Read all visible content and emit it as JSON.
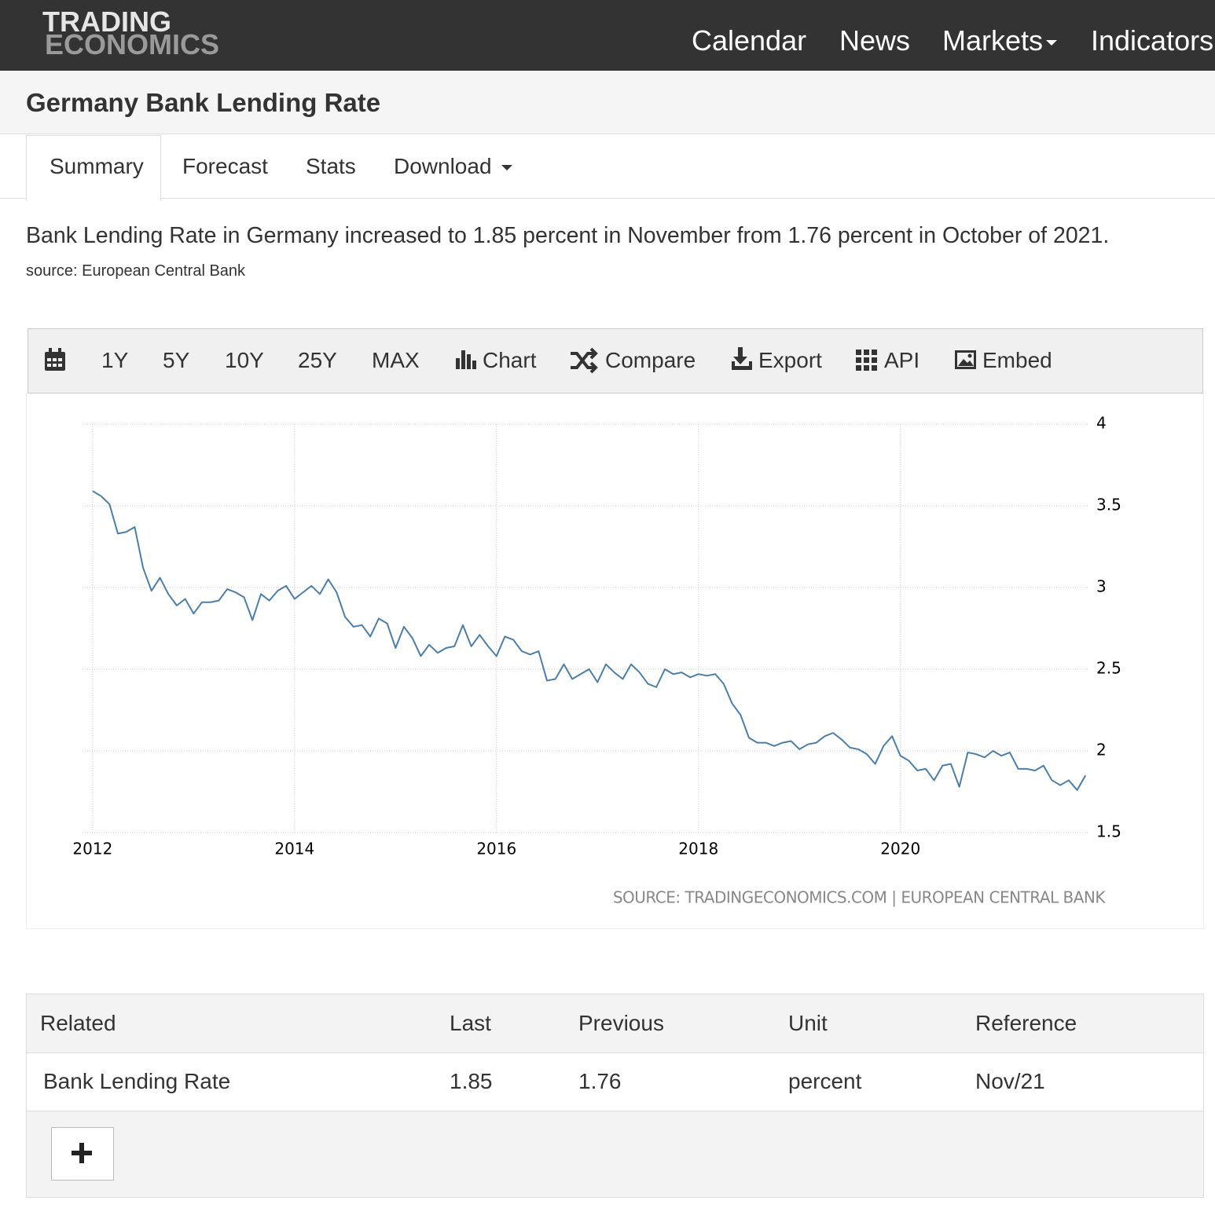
{
  "nav": {
    "logo": [
      "TRADING",
      "ECONOMICS"
    ],
    "links": [
      "Calendar",
      "News",
      "Markets",
      "Indicators"
    ]
  },
  "header": {
    "title": "Germany Bank Lending Rate"
  },
  "tabs": [
    "Summary",
    "Forecast",
    "Stats",
    "Download"
  ],
  "summary": {
    "text": "Bank Lending Rate in Germany increased to 1.85 percent in November from 1.76 percent in October of 2021.",
    "source": "source: European Central Bank"
  },
  "toolbar": [
    "1Y",
    "5Y",
    "10Y",
    "25Y",
    "MAX",
    "Chart",
    "Compare",
    "Export",
    "API",
    "Embed"
  ],
  "chart_data": {
    "type": "line",
    "color": "#4a7fab",
    "x": [
      2012,
      2012.083,
      2012.167,
      2012.25,
      2012.333,
      2012.417,
      2012.5,
      2012.583,
      2012.667,
      2012.75,
      2012.833,
      2012.917,
      2013,
      2013.083,
      2013.167,
      2013.25,
      2013.333,
      2013.417,
      2013.5,
      2013.583,
      2013.667,
      2013.75,
      2013.833,
      2013.917,
      2014,
      2014.083,
      2014.167,
      2014.25,
      2014.333,
      2014.417,
      2014.5,
      2014.583,
      2014.667,
      2014.75,
      2014.833,
      2014.917,
      2015,
      2015.083,
      2015.167,
      2015.25,
      2015.333,
      2015.417,
      2015.5,
      2015.583,
      2015.667,
      2015.75,
      2015.833,
      2015.917,
      2016,
      2016.083,
      2016.167,
      2016.25,
      2016.333,
      2016.417,
      2016.5,
      2016.583,
      2016.667,
      2016.75,
      2016.833,
      2016.917,
      2017,
      2017.083,
      2017.167,
      2017.25,
      2017.333,
      2017.417,
      2017.5,
      2017.583,
      2017.667,
      2017.75,
      2017.833,
      2017.917,
      2018,
      2018.083,
      2018.167,
      2018.25,
      2018.333,
      2018.417,
      2018.5,
      2018.583,
      2018.667,
      2018.75,
      2018.833,
      2018.917,
      2019,
      2019.083,
      2019.167,
      2019.25,
      2019.333,
      2019.417,
      2019.5,
      2019.583,
      2019.667,
      2019.75,
      2019.833,
      2019.917,
      2020,
      2020.083,
      2020.167,
      2020.25,
      2020.333,
      2020.417,
      2020.5,
      2020.583,
      2020.667,
      2020.75,
      2020.833,
      2020.917,
      2021,
      2021.083,
      2021.167,
      2021.25,
      2021.333,
      2021.417,
      2021.5,
      2021.583,
      2021.667,
      2021.75,
      2021.833
    ],
    "values": [
      3.59,
      3.56,
      3.51,
      3.33,
      3.34,
      3.37,
      3.12,
      2.98,
      3.06,
      2.96,
      2.89,
      2.93,
      2.84,
      2.91,
      2.91,
      2.92,
      2.99,
      2.97,
      2.94,
      2.8,
      2.96,
      2.92,
      2.98,
      3.01,
      2.93,
      2.97,
      3.01,
      2.96,
      3.05,
      2.97,
      2.82,
      2.76,
      2.77,
      2.7,
      2.81,
      2.78,
      2.63,
      2.76,
      2.69,
      2.58,
      2.65,
      2.6,
      2.63,
      2.64,
      2.77,
      2.64,
      2.71,
      2.64,
      2.58,
      2.7,
      2.68,
      2.61,
      2.59,
      2.61,
      2.43,
      2.44,
      2.53,
      2.44,
      2.47,
      2.5,
      2.42,
      2.53,
      2.48,
      2.44,
      2.53,
      2.48,
      2.41,
      2.39,
      2.5,
      2.47,
      2.48,
      2.45,
      2.47,
      2.46,
      2.47,
      2.41,
      2.29,
      2.22,
      2.08,
      2.05,
      2.05,
      2.03,
      2.05,
      2.06,
      2.01,
      2.04,
      2.05,
      2.09,
      2.11,
      2.07,
      2.02,
      2.01,
      1.98,
      1.92,
      2.03,
      2.09,
      1.97,
      1.94,
      1.88,
      1.89,
      1.82,
      1.91,
      1.92,
      1.78,
      1.99,
      1.98,
      1.96,
      2.0,
      1.97,
      1.99,
      1.89,
      1.89,
      1.88,
      1.91,
      1.82,
      1.79,
      1.82,
      1.76,
      1.85
    ],
    "xlim": [
      2011.9,
      2021.87
    ],
    "xticks": [
      2012,
      2014,
      2016,
      2018,
      2020
    ],
    "ylim": [
      1.5,
      4
    ],
    "yticks": [
      1.5,
      2,
      2.5,
      3,
      3.5,
      4
    ],
    "grid": true,
    "credit": "SOURCE: TRADINGECONOMICS.COM | EUROPEAN CENTRAL BANK"
  },
  "table": {
    "header": [
      "Related",
      "Last",
      "Previous",
      "Unit",
      "Reference"
    ],
    "rows": [
      [
        "Bank Lending Rate",
        1.85,
        1.76,
        "percent",
        "Nov/21"
      ]
    ]
  }
}
